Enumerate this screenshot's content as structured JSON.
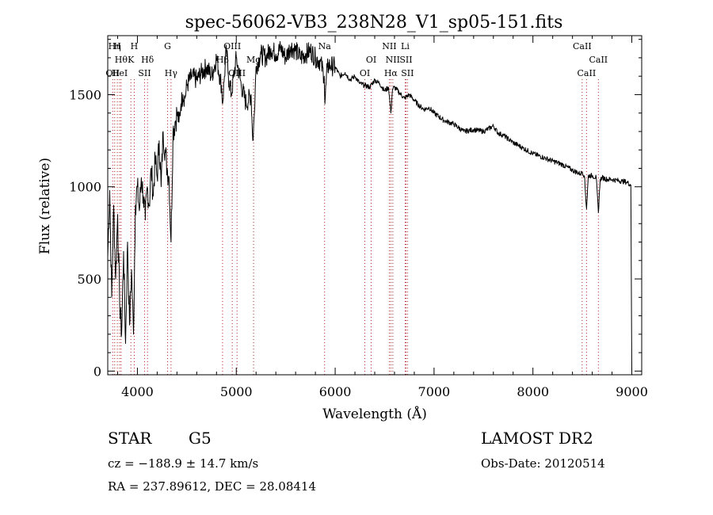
{
  "chart_data": {
    "type": "line",
    "title": "spec-56062-VB3_238N28_V1_sp05-151.fits",
    "xlabel": "Wavelength (Å)",
    "ylabel": "Flux (relative)",
    "xlim": [
      3700,
      9100
    ],
    "ylim": [
      -20,
      1820
    ],
    "xticks": [
      4000,
      5000,
      6000,
      7000,
      8000,
      9000
    ],
    "yticks": [
      0,
      500,
      1000,
      1500
    ],
    "grid": false,
    "series": [
      {
        "x": [
          3700,
          3720,
          3740,
          3760,
          3780,
          3800,
          3820,
          3840,
          3860,
          3880,
          3900,
          3920,
          3940,
          3960,
          3980,
          4000,
          4020,
          4040,
          4060,
          4080,
          4100,
          4120,
          4140,
          4160,
          4180,
          4200,
          4220,
          4240,
          4260,
          4280,
          4300,
          4320,
          4340,
          4360,
          4380,
          4400,
          4420,
          4440,
          4460,
          4480,
          4500,
          4550,
          4600,
          4650,
          4700,
          4750,
          4800,
          4850,
          4861,
          4880,
          4900,
          4920,
          4950,
          5000,
          5050,
          5100,
          5150,
          5167,
          5183,
          5200,
          5250,
          5300,
          5350,
          5400,
          5450,
          5500,
          5550,
          5600,
          5650,
          5700,
          5750,
          5800,
          5850,
          5890,
          5896,
          5920,
          5950,
          6000,
          6050,
          6100,
          6150,
          6200,
          6250,
          6300,
          6350,
          6400,
          6450,
          6500,
          6540,
          6563,
          6580,
          6600,
          6650,
          6700,
          6750,
          6800,
          6850,
          6900,
          6950,
          7000,
          7100,
          7200,
          7300,
          7400,
          7500,
          7600,
          7650,
          7700,
          7800,
          7900,
          8000,
          8100,
          8200,
          8300,
          8400,
          8480,
          8500,
          8520,
          8542,
          8560,
          8600,
          8640,
          8662,
          8680,
          8700,
          8750,
          8800,
          8850,
          8900,
          8950,
          8990,
          9000
        ],
        "values": [
          620,
          980,
          400,
          900,
          500,
          850,
          380,
          200,
          650,
          150,
          700,
          250,
          550,
          200,
          900,
          1000,
          870,
          1050,
          950,
          820,
          1000,
          900,
          1100,
          950,
          1150,
          1050,
          1250,
          1000,
          1300,
          1200,
          1100,
          1050,
          700,
          1300,
          1350,
          1400,
          1350,
          1450,
          1500,
          1480,
          1550,
          1600,
          1580,
          1620,
          1650,
          1600,
          1700,
          1550,
          1450,
          1600,
          1750,
          1600,
          1500,
          1700,
          1550,
          1450,
          1500,
          1250,
          1400,
          1650,
          1720,
          1700,
          1750,
          1720,
          1750,
          1700,
          1760,
          1740,
          1700,
          1720,
          1740,
          1700,
          1680,
          1600,
          1450,
          1650,
          1660,
          1650,
          1600,
          1620,
          1580,
          1600,
          1560,
          1550,
          1540,
          1580,
          1560,
          1520,
          1540,
          1400,
          1530,
          1540,
          1510,
          1480,
          1500,
          1470,
          1440,
          1420,
          1430,
          1400,
          1360,
          1340,
          1300,
          1310,
          1300,
          1330,
          1290,
          1280,
          1240,
          1210,
          1180,
          1160,
          1140,
          1120,
          1090,
          1070,
          1080,
          1060,
          880,
          1060,
          1060,
          1050,
          860,
          1040,
          1050,
          1040,
          1040,
          1035,
          1030,
          1025,
          1010,
          0
        ]
      }
    ],
    "line_markers": [
      {
        "wl": 3750,
        "label": "OII",
        "row": 3
      },
      {
        "wl": 3770,
        "label": "Hη",
        "row": 1
      },
      {
        "wl": 3797,
        "label": "H",
        "row": 1
      },
      {
        "wl": 3835,
        "label": "Hθ",
        "row": 2
      },
      {
        "wl": 3820,
        "label": "HeI",
        "row": 3
      },
      {
        "wl": 3934,
        "label": "K",
        "row": 2
      },
      {
        "wl": 3968,
        "label": "H",
        "row": 1
      },
      {
        "wl": 4072,
        "label": "SII",
        "row": 3
      },
      {
        "wl": 4102,
        "label": "Hδ",
        "row": 2
      },
      {
        "wl": 4305,
        "label": "G",
        "row": 1
      },
      {
        "wl": 4340,
        "label": "Hγ",
        "row": 3
      },
      {
        "wl": 4861,
        "label": "Hβ",
        "row": 2
      },
      {
        "wl": 4959,
        "label": "OIII",
        "row": 1
      },
      {
        "wl": 5007,
        "label": "OIII",
        "row": 3
      },
      {
        "wl": 5175,
        "label": "Mg",
        "row": 2
      },
      {
        "wl": 5893,
        "label": "Na",
        "row": 1
      },
      {
        "wl": 6300,
        "label": "OI",
        "row": 3
      },
      {
        "wl": 6364,
        "label": "OI",
        "row": 2
      },
      {
        "wl": 6548,
        "label": "NII",
        "row": 1
      },
      {
        "wl": 6563,
        "label": "Hα",
        "row": 3
      },
      {
        "wl": 6583,
        "label": "NII",
        "row": 2
      },
      {
        "wl": 6708,
        "label": "Li",
        "row": 1
      },
      {
        "wl": 6716,
        "label": "SII",
        "row": 2
      },
      {
        "wl": 6731,
        "label": "SII",
        "row": 3
      },
      {
        "wl": 8498,
        "label": "CaII",
        "row": 1
      },
      {
        "wl": 8542,
        "label": "CaII",
        "row": 3
      },
      {
        "wl": 8662,
        "label": "CaII",
        "row": 2
      }
    ],
    "colors": {
      "line": "#000000",
      "markers": "#b22222"
    }
  },
  "footer": {
    "object_type": "STAR",
    "subclass": "G5",
    "survey": "LAMOST DR2",
    "cz": "cz = −188.9 ± 14.7 km/s",
    "obs_date": "Obs-Date: 20120514",
    "coords": "RA = 237.89612, DEC =  28.08414"
  }
}
